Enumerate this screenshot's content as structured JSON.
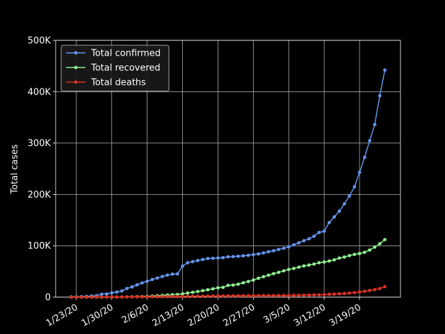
{
  "chart_data": {
    "type": "line",
    "title": "",
    "xlabel": "",
    "ylabel": "Total cases",
    "ylim": [
      0,
      500000
    ],
    "grid": true,
    "legend_position": "top-left",
    "x_ticks": [
      "1/23/20",
      "1/30/20",
      "2/6/20",
      "2/13/20",
      "2/20/20",
      "2/27/20",
      "3/5/20",
      "3/12/20",
      "3/19/20"
    ],
    "y_ticks": [
      "0",
      "100K",
      "200K",
      "300K",
      "400K",
      "500K"
    ],
    "y_tick_values": [
      0,
      100000,
      200000,
      300000,
      400000,
      500000
    ],
    "x": [
      "1/22/20",
      "1/23/20",
      "1/24/20",
      "1/25/20",
      "1/26/20",
      "1/27/20",
      "1/28/20",
      "1/29/20",
      "1/30/20",
      "1/31/20",
      "2/1/20",
      "2/2/20",
      "2/3/20",
      "2/4/20",
      "2/5/20",
      "2/6/20",
      "2/7/20",
      "2/8/20",
      "2/9/20",
      "2/10/20",
      "2/11/20",
      "2/12/20",
      "2/13/20",
      "2/14/20",
      "2/15/20",
      "2/16/20",
      "2/17/20",
      "2/18/20",
      "2/19/20",
      "2/20/20",
      "2/21/20",
      "2/22/20",
      "2/23/20",
      "2/24/20",
      "2/25/20",
      "2/26/20",
      "2/27/20",
      "2/28/20",
      "2/29/20",
      "3/1/20",
      "3/2/20",
      "3/3/20",
      "3/4/20",
      "3/5/20",
      "3/6/20",
      "3/7/20",
      "3/8/20",
      "3/9/20",
      "3/10/20",
      "3/11/20",
      "3/12/20",
      "3/13/20",
      "3/14/20",
      "3/15/20",
      "3/16/20",
      "3/17/20",
      "3/18/20",
      "3/19/20",
      "3/20/20",
      "3/21/20",
      "3/22/20",
      "3/23/20",
      "3/24/20"
    ],
    "series": [
      {
        "name": "Total confirmed",
        "color": "#6495ed",
        "values": [
          555,
          654,
          941,
          1434,
          2118,
          2927,
          5578,
          6166,
          8234,
          9927,
          12038,
          16787,
          19881,
          23892,
          27635,
          30794,
          34391,
          37120,
          40150,
          42762,
          44802,
          45221,
          60368,
          66885,
          69030,
          71224,
          73258,
          75136,
          75639,
          76197,
          76819,
          78572,
          78958,
          79561,
          80406,
          81388,
          82746,
          84112,
          86011,
          88369,
          90306,
          92840,
          95120,
          97886,
          101800,
          105847,
          109821,
          113590,
          118620,
          125875,
          128343,
          145193,
          156097,
          167449,
          181546,
          197142,
          214910,
          242708,
          272166,
          304524,
          335955,
          392000,
          442000
        ]
      },
      {
        "name": "Total recovered",
        "color": "#90ee90",
        "values": [
          28,
          30,
          36,
          39,
          52,
          61,
          107,
          126,
          143,
          222,
          284,
          472,
          623,
          852,
          1124,
          1487,
          2011,
          2616,
          3244,
          3946,
          4683,
          5150,
          6295,
          8058,
          9395,
          10865,
          12583,
          14352,
          16121,
          18177,
          18890,
          22886,
          23394,
          25227,
          27905,
          30384,
          33277,
          36711,
          39782,
          42716,
          45602,
          48228,
          51170,
          53796,
          55865,
          58358,
          60694,
          62494,
          64404,
          67003,
          68324,
          70251,
          72624,
          76034,
          78088,
          80840,
          83207,
          84854,
          87256,
          91676,
          97243,
          104000,
          112000
        ]
      },
      {
        "name": "Total deaths",
        "color": "#dc3222",
        "values": [
          17,
          18,
          26,
          42,
          56,
          82,
          131,
          133,
          171,
          213,
          259,
          362,
          426,
          492,
          564,
          634,
          719,
          806,
          906,
          1013,
          1113,
          1118,
          1371,
          1523,
          1666,
          1770,
          1868,
          2007,
          2122,
          2247,
          2251,
          2458,
          2469,
          2629,
          2708,
          2770,
          2814,
          2872,
          2941,
          2996,
          3085,
          3160,
          3254,
          3348,
          3460,
          3558,
          3802,
          3988,
          4262,
          4615,
          4720,
          5404,
          5819,
          6440,
          7126,
          7905,
          8733,
          9867,
          11299,
          12973,
          14623,
          16800,
          20400
        ]
      }
    ]
  }
}
